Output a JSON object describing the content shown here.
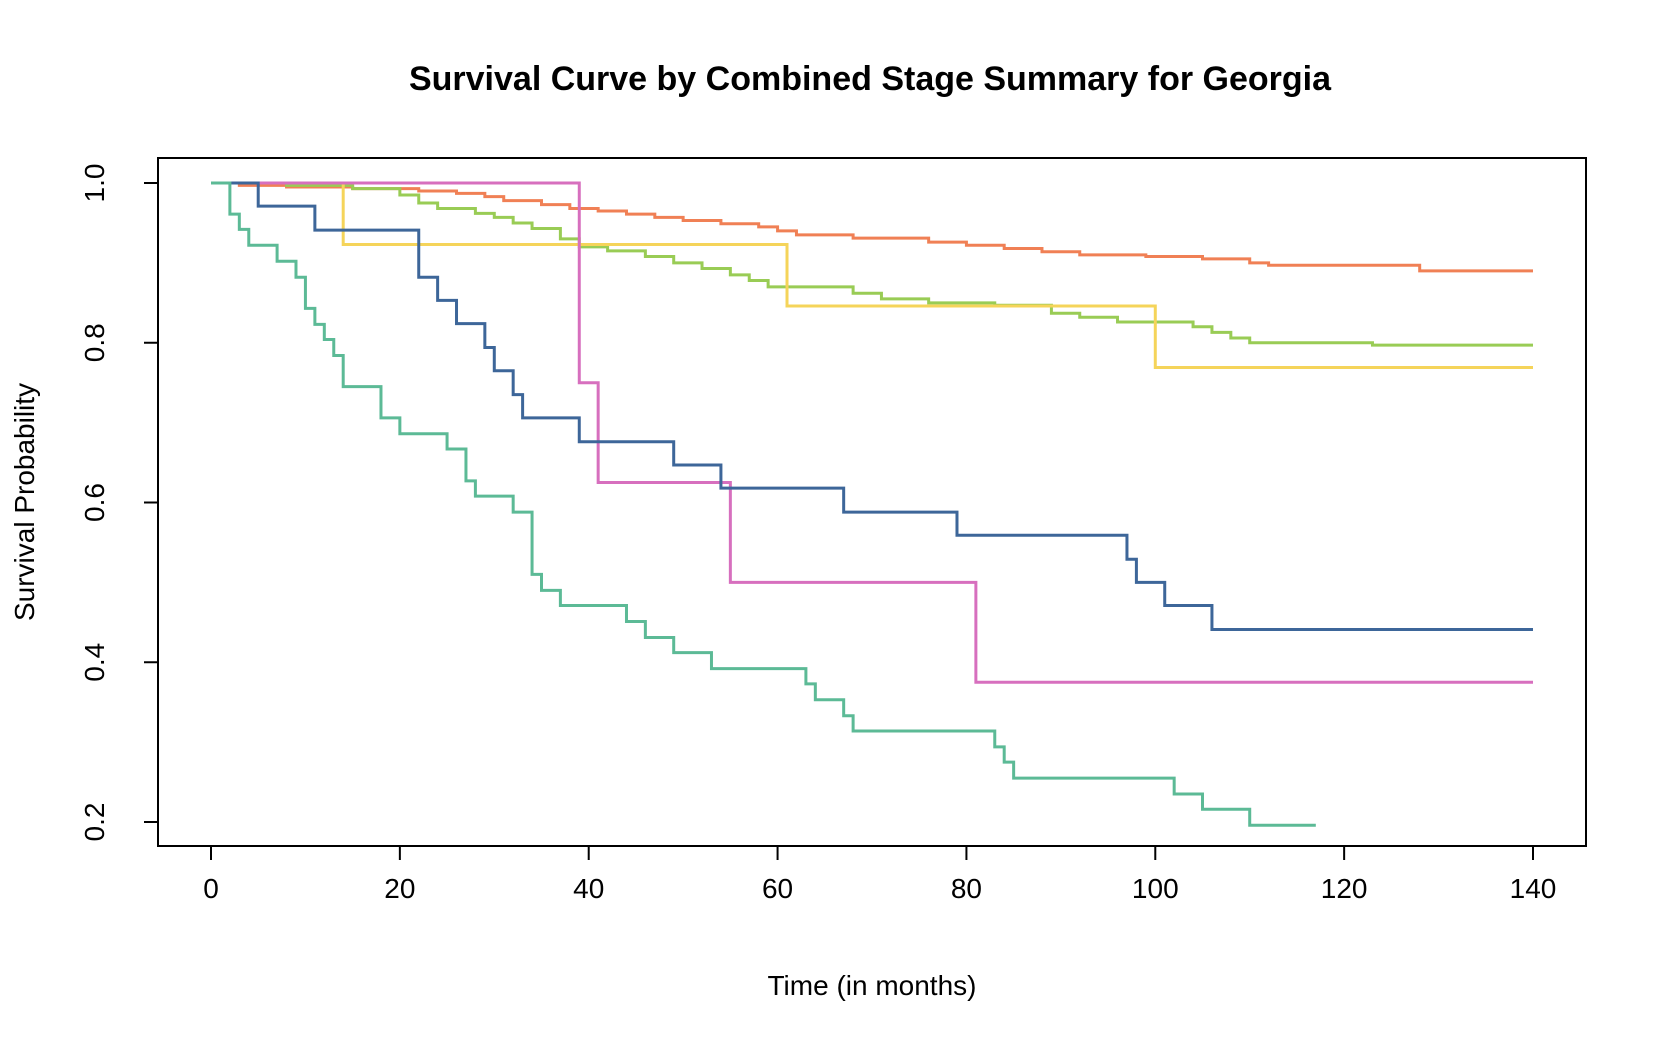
{
  "chart_data": {
    "type": "line",
    "step": true,
    "title": "Survival Curve by Combined Stage Summary for Georgia",
    "xlabel": "Time (in months)",
    "ylabel": "Survival Probability",
    "xlim": [
      0,
      140
    ],
    "ylim": [
      0.18,
      1.0
    ],
    "xticks": [
      0,
      20,
      40,
      60,
      80,
      100,
      120,
      140
    ],
    "xtick_labels": [
      "0",
      "20",
      "40",
      "60",
      "80",
      "100",
      "120",
      "140"
    ],
    "yticks": [
      0.2,
      0.4,
      0.6,
      0.8,
      1.0
    ],
    "ytick_labels": [
      "0.2",
      "0.4",
      "0.6",
      "0.8",
      "1.0"
    ],
    "grid": false,
    "legend": false,
    "series": [
      {
        "color": "#f08055",
        "x": [
          0,
          3,
          8,
          15,
          22,
          26,
          29,
          31,
          35,
          38,
          41,
          44,
          47,
          50,
          54,
          58,
          60,
          62,
          68,
          76,
          80,
          84,
          88,
          92,
          99,
          105,
          110,
          112,
          128,
          140
        ],
        "y": [
          1.0,
          0.997,
          0.995,
          0.993,
          0.99,
          0.987,
          0.983,
          0.978,
          0.973,
          0.968,
          0.965,
          0.961,
          0.957,
          0.953,
          0.949,
          0.945,
          0.94,
          0.935,
          0.931,
          0.926,
          0.922,
          0.918,
          0.914,
          0.91,
          0.908,
          0.905,
          0.9,
          0.897,
          0.89,
          0.89
        ]
      },
      {
        "color": "#99cc55",
        "x": [
          0,
          8,
          15,
          20,
          22,
          24,
          28,
          30,
          32,
          34,
          37,
          39,
          42,
          46,
          49,
          52,
          55,
          57,
          59,
          68,
          71,
          76,
          83,
          89,
          92,
          96,
          104,
          106,
          108,
          110,
          123,
          140
        ],
        "y": [
          1.0,
          0.997,
          0.993,
          0.985,
          0.975,
          0.968,
          0.962,
          0.957,
          0.95,
          0.943,
          0.93,
          0.92,
          0.915,
          0.908,
          0.9,
          0.893,
          0.885,
          0.878,
          0.87,
          0.862,
          0.855,
          0.85,
          0.847,
          0.837,
          0.832,
          0.826,
          0.82,
          0.813,
          0.806,
          0.8,
          0.797,
          0.797
        ]
      },
      {
        "color": "#f5d45a",
        "x": [
          0,
          14,
          61,
          100,
          140
        ],
        "y": [
          1.0,
          0.923,
          0.846,
          0.769,
          0.769
        ]
      },
      {
        "color": "#d76fbe",
        "x": [
          0,
          39,
          41,
          55,
          81,
          140
        ],
        "y": [
          1.0,
          0.75,
          0.625,
          0.5,
          0.375,
          0.375
        ]
      },
      {
        "color": "#3d6699",
        "x": [
          0,
          5,
          11,
          22,
          24,
          26,
          29,
          30,
          32,
          33,
          39,
          49,
          54,
          67,
          79,
          97,
          98,
          101,
          106,
          140
        ],
        "y": [
          1.0,
          0.971,
          0.941,
          0.882,
          0.853,
          0.824,
          0.794,
          0.765,
          0.735,
          0.706,
          0.676,
          0.647,
          0.618,
          0.588,
          0.559,
          0.529,
          0.5,
          0.471,
          0.441,
          0.441
        ]
      },
      {
        "color": "#5cba96",
        "x": [
          0,
          2,
          3,
          4,
          7,
          9,
          10,
          11,
          12,
          13,
          14,
          18,
          20,
          25,
          27,
          28,
          32,
          34,
          35,
          37,
          44,
          46,
          49,
          53,
          63,
          64,
          67,
          68,
          83,
          84,
          85,
          102,
          105,
          110,
          117
        ],
        "y": [
          1.0,
          0.961,
          0.942,
          0.922,
          0.902,
          0.882,
          0.843,
          0.823,
          0.804,
          0.784,
          0.745,
          0.706,
          0.686,
          0.667,
          0.627,
          0.608,
          0.588,
          0.51,
          0.49,
          0.471,
          0.451,
          0.431,
          0.412,
          0.392,
          0.373,
          0.353,
          0.333,
          0.314,
          0.294,
          0.275,
          0.255,
          0.235,
          0.216,
          0.196,
          0.196
        ]
      }
    ]
  }
}
